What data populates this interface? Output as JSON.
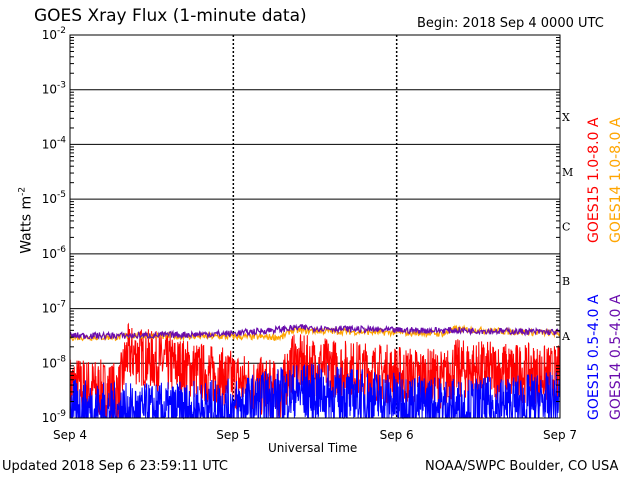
{
  "header": {
    "title": "GOES Xray Flux (1-minute data)",
    "begin": "Begin:  2018 Sep 4 0000 UTC"
  },
  "footer": {
    "updated": "Updated 2018 Sep  6 23:59:11 UTC",
    "credit": "NOAA/SWPC Boulder, CO USA"
  },
  "chart_data": {
    "type": "line",
    "title": "GOES Xray Flux (1-minute data)",
    "xlabel": "Universal Time",
    "ylabel": "Watts m",
    "ylabel_exponent": "-2",
    "yscale": "log",
    "ylim": [
      1e-09,
      0.01
    ],
    "xlim": [
      "Sep 4",
      "Sep 7"
    ],
    "x_ticks": [
      "Sep 4",
      "Sep 5",
      "Sep 6",
      "Sep 7"
    ],
    "y_ticks": [
      {
        "base": "10",
        "exp": "-9"
      },
      {
        "base": "10",
        "exp": "-8"
      },
      {
        "base": "10",
        "exp": "-7"
      },
      {
        "base": "10",
        "exp": "-6"
      },
      {
        "base": "10",
        "exp": "-5"
      },
      {
        "base": "10",
        "exp": "-4"
      },
      {
        "base": "10",
        "exp": "-3"
      },
      {
        "base": "10",
        "exp": "-2"
      }
    ],
    "flare_classes": [
      "A",
      "B",
      "C",
      "M",
      "X"
    ],
    "grid": true,
    "series": [
      {
        "name": "GOES15 1.0-8.0 A",
        "color": "#ff0000",
        "day": [
          0,
          0.3,
          0.35,
          1.3,
          1.35,
          2.3,
          2.35,
          3
        ],
        "flux": [
          4e-09,
          3e-09,
          1.5e-08,
          3e-09,
          1e-08,
          5e-09,
          8e-09,
          6e-09
        ]
      },
      {
        "name": "GOES14 1.0-8.0 A",
        "color": "#ffa500",
        "day": [
          0,
          0.3,
          0.35,
          1.3,
          1.35,
          2.3,
          2.35,
          3
        ],
        "flux": [
          3e-08,
          3e-08,
          3.2e-08,
          3e-08,
          4e-08,
          3.5e-08,
          4.2e-08,
          3.5e-08
        ]
      },
      {
        "name": "GOES15 0.5-4.0 A",
        "color": "#0000ff",
        "day": [
          0,
          0.4,
          1.0,
          1.4,
          2.0,
          2.4,
          3
        ],
        "flux": [
          1.5e-09,
          1.2e-09,
          1.5e-09,
          3e-09,
          2e-09,
          1.5e-09,
          2e-09
        ]
      },
      {
        "name": "GOES14 0.5-4.0 A",
        "color": "#6a0dad",
        "day": [
          0,
          0.4,
          1.0,
          1.4,
          2.0,
          2.4,
          3
        ],
        "flux": [
          3.2e-08,
          3.2e-08,
          3.5e-08,
          4.5e-08,
          4e-08,
          4e-08,
          3.7e-08
        ]
      }
    ]
  }
}
